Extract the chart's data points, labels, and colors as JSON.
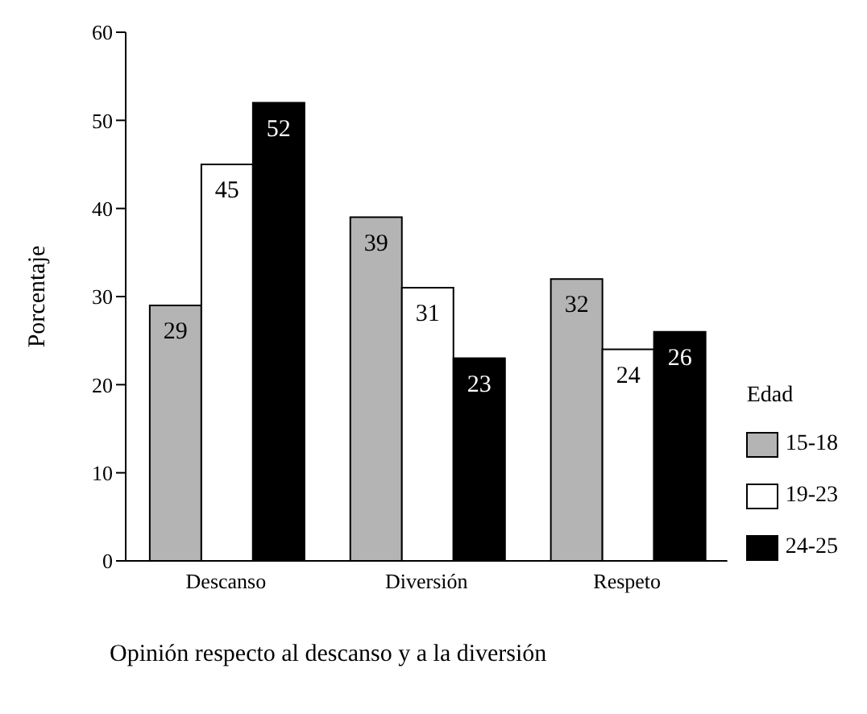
{
  "chart_data": {
    "type": "bar",
    "categories": [
      "Descanso",
      "Diversión",
      "Respeto"
    ],
    "series": [
      {
        "name": "15-18",
        "color": "#b4b4b4",
        "values": [
          29,
          39,
          32
        ]
      },
      {
        "name": "19-23",
        "color": "#ffffff",
        "values": [
          45,
          31,
          24
        ]
      },
      {
        "name": "24-25",
        "color": "#000000",
        "values": [
          52,
          23,
          26
        ]
      }
    ],
    "ylabel": "Porcentaje",
    "legend_title": "Edad",
    "legend": "right",
    "ylim": [
      0,
      60
    ],
    "yticks": [
      0,
      10,
      20,
      30,
      40,
      50,
      60
    ],
    "grid": false,
    "data_labels": true,
    "annotations": [
      "Opinión respecto al descanso y a la diversión"
    ]
  }
}
